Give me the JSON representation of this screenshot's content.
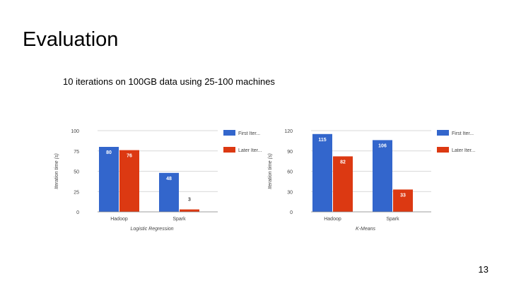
{
  "slide": {
    "title": "Evaluation",
    "subtitle": "10 iterations on 100GB data using 25-100 machines",
    "page_number": "13"
  },
  "colors": {
    "first": "#3366cc",
    "later": "#dc3912",
    "grid": "#cccccc",
    "axis_text": "#444444",
    "label_text": "#ffffff"
  },
  "chart_data": [
    {
      "type": "bar",
      "xlabel": "Logistic Regression",
      "ylabel": "Iteration time (s)",
      "categories": [
        "Hadoop",
        "Spark"
      ],
      "series": [
        {
          "name": "First Iter...",
          "values": [
            80,
            48
          ]
        },
        {
          "name": "Later Iter...",
          "values": [
            76,
            3
          ]
        }
      ],
      "ylim": [
        0,
        100
      ],
      "yticks": [
        0,
        25,
        50,
        75,
        100
      ],
      "grid": true,
      "legend": "right"
    },
    {
      "type": "bar",
      "xlabel": "K-Means",
      "ylabel": "Iteration time (s)",
      "categories": [
        "Hadoop",
        "Spark"
      ],
      "series": [
        {
          "name": "First Iter...",
          "values": [
            115,
            106
          ]
        },
        {
          "name": "Later Iter...",
          "values": [
            82,
            33
          ]
        }
      ],
      "ylim": [
        0,
        120
      ],
      "yticks": [
        0,
        30,
        60,
        90,
        120
      ],
      "grid": true,
      "legend": "right"
    }
  ]
}
